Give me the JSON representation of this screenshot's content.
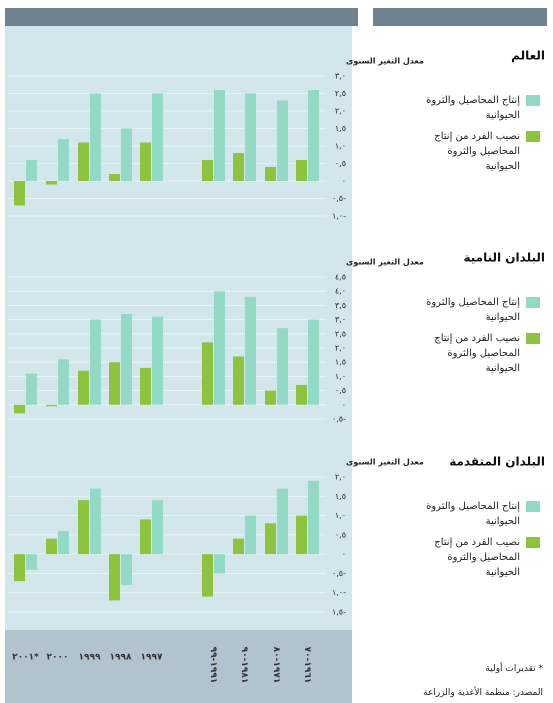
{
  "chart_data": [
    {
      "type": "bar",
      "title": "العالم",
      "y_label": "معدل التغير السنوى",
      "categories": [
        "٢٠٠١*",
        "٢٠٠٠",
        "١٩٩٩",
        "١٩٩٨",
        "١٩٩٧",
        "١٩٩١-٩٩",
        "١٩٨١-٩٠",
        "١٩٧١-٨٠",
        "١٩٦١-٧٠"
      ],
      "series": [
        {
          "name": "إنتاج المحاصيل والثروة الحيوانية",
          "color": "#93dac6",
          "values": [
            0.6,
            1.2,
            2.5,
            1.5,
            2.5,
            2.6,
            2.5,
            2.3,
            2.6
          ]
        },
        {
          "name": "نصيب الفرد من إنتاج المحاصيل والثروة الحيوانية",
          "color": "#8cc43f",
          "values": [
            -0.7,
            -0.1,
            1.1,
            0.2,
            1.1,
            0.6,
            0.8,
            0.4,
            0.6
          ]
        }
      ],
      "ylim": [
        -1,
        3
      ],
      "yticks": [
        {
          "value": 3,
          "label": "٣,٠"
        },
        {
          "value": 2.5,
          "label": "٢,٥"
        },
        {
          "value": 2,
          "label": "٢,٠"
        },
        {
          "value": 1.5,
          "label": "١,٥"
        },
        {
          "value": 1,
          "label": "١,٠"
        },
        {
          "value": 0.5,
          "label": "٠,٥"
        },
        {
          "value": 0,
          "label": "٠"
        },
        {
          "value": -0.5,
          "label": "٠,٥-"
        },
        {
          "value": -1,
          "label": "١,٠-"
        }
      ],
      "grid": true
    },
    {
      "type": "bar",
      "title": "البلدان النامية",
      "y_label": "معدل التغير السنوى",
      "series": [
        {
          "name": "إنتاج المحاصيل والثروة الحيوانية",
          "color": "#93dac6",
          "values": [
            1.1,
            1.6,
            3.0,
            3.2,
            3.1,
            4.0,
            3.8,
            2.7,
            3.0
          ]
        },
        {
          "name": "نصيب الفرد من إنتاج المحاصيل والثروة الحيوانية",
          "color": "#8cc43f",
          "values": [
            -0.3,
            -0.05,
            1.2,
            1.5,
            1.3,
            2.2,
            1.7,
            0.5,
            0.7
          ]
        }
      ],
      "ylim": [
        -0.5,
        4.5
      ],
      "yticks": [
        {
          "value": 4.5,
          "label": "٤,٥"
        },
        {
          "value": 4,
          "label": "٤,٠"
        },
        {
          "value": 3.5,
          "label": "٣,٥"
        },
        {
          "value": 3,
          "label": "٣,٠"
        },
        {
          "value": 2.5,
          "label": "٢,٥"
        },
        {
          "value": 2,
          "label": "٢,٠"
        },
        {
          "value": 1.5,
          "label": "١,٥"
        },
        {
          "value": 1,
          "label": "١,٠"
        },
        {
          "value": 0.5,
          "label": "٠,٥"
        },
        {
          "value": 0,
          "label": "٠"
        },
        {
          "value": -0.5,
          "label": "٠,٥-"
        }
      ],
      "grid": true
    },
    {
      "type": "bar",
      "title": "البلدان المتقدمة",
      "y_label": "معدل التغير السنوى",
      "series": [
        {
          "name": "إنتاج المحاصيل والثروة الحيوانية",
          "color": "#93dac6",
          "values": [
            -0.4,
            0.6,
            1.7,
            -0.8,
            1.4,
            -0.5,
            1.0,
            1.7,
            1.9
          ]
        },
        {
          "name": "نصيب الفرد من إنتاج المحاصيل والثروة الحيوانية",
          "color": "#8cc43f",
          "values": [
            -0.7,
            0.4,
            1.4,
            -1.2,
            0.9,
            -1.1,
            0.4,
            0.8,
            1.0
          ]
        }
      ],
      "ylim": [
        -1.5,
        2
      ],
      "yticks": [
        {
          "value": 2,
          "label": "٢,٠"
        },
        {
          "value": 1.5,
          "label": "١,٥"
        },
        {
          "value": 1,
          "label": "١,٠"
        },
        {
          "value": 0.5,
          "label": "٠,٥"
        },
        {
          "value": 0,
          "label": "٠"
        },
        {
          "value": -0.5,
          "label": "٠,٥-"
        },
        {
          "value": -1,
          "label": "١,٠-"
        },
        {
          "value": -1.5,
          "label": "١,٥-"
        }
      ],
      "grid": true
    }
  ],
  "footnote": "* تقديرات أولية",
  "source": "المصدر: منظمة الأغذية والزراعة"
}
